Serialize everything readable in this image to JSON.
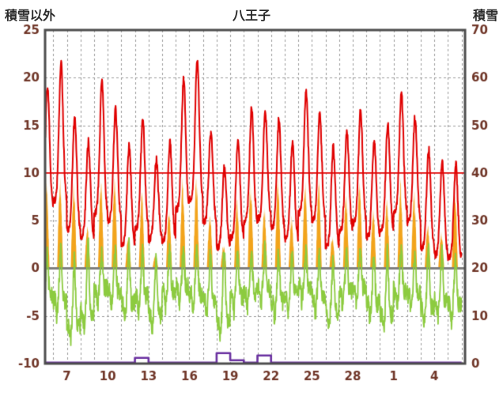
{
  "chart_data": {
    "type": "line",
    "title": "八王子",
    "left_axis": {
      "label": "積雪以外",
      "min": -10,
      "max": 25,
      "ticks": [
        25,
        20,
        15,
        10,
        5,
        0,
        -5,
        -10
      ],
      "tick_color": "#6f3527"
    },
    "right_axis": {
      "label": "積雪",
      "min": 0,
      "max": 70,
      "ticks": [
        70,
        60,
        50,
        40,
        30,
        20,
        10,
        0
      ]
    },
    "x_axis": {
      "tick_labels": [
        "7",
        "10",
        "13",
        "16",
        "19",
        "22",
        "25",
        "28",
        "1",
        "4"
      ],
      "tick_days": [
        7,
        10,
        13,
        16,
        19,
        22,
        25,
        28,
        31,
        34
      ],
      "first_day": 5,
      "start_day": 5.4,
      "end_day": 36.25
    },
    "grid": {
      "dashed_color": "#9a9a9a",
      "zero_line_color": "#7d7d7d",
      "ten_line_color": "#e00000",
      "frame_color": "#4d4d4d"
    },
    "series": {
      "red_line": {
        "color": "#e00000",
        "daily_max": [
          19.2,
          21.3,
          15.7,
          13.2,
          19.6,
          16.6,
          12.8,
          15.6,
          11.4,
          13.2,
          19.8,
          21.8,
          14.3,
          10.6,
          13.4,
          16.6,
          16.4,
          15.6,
          13.2,
          18.6,
          16.2,
          12.6,
          14.4,
          16.4,
          13.4,
          15.2,
          18.4,
          15.8,
          12.4,
          11.2,
          10.8
        ],
        "daily_min": [
          6.5,
          7.0,
          4.0,
          3.2,
          5.8,
          5.0,
          2.4,
          4.2,
          3.0,
          3.0,
          6.2,
          7.2,
          4.8,
          2.2,
          3.2,
          4.8,
          5.2,
          4.2,
          3.0,
          5.8,
          5.0,
          2.2,
          3.8,
          4.8,
          3.2,
          4.0,
          5.8,
          4.8,
          2.0,
          1.4,
          1.0
        ]
      },
      "green_line": {
        "color": "#8ccb3f",
        "daily_max": [
          1.8,
          2.2,
          1.2,
          2.8,
          1.4,
          1.6,
          2.4,
          1.8,
          1.2,
          2.0,
          1.6,
          2.6,
          1.4,
          2.2,
          1.8,
          1.4,
          2.0,
          1.6,
          1.2,
          1.8,
          1.4,
          1.0,
          1.6,
          2.0,
          1.2,
          1.6,
          1.8,
          1.4,
          2.2,
          1.6,
          1.2
        ],
        "daily_min": [
          -4.5,
          -5.0,
          -7.6,
          -6.2,
          -3.8,
          -4.2,
          -5.4,
          -4.6,
          -6.6,
          -4.0,
          -3.6,
          -4.4,
          -5.0,
          -7.2,
          -4.6,
          -4.2,
          -3.8,
          -5.2,
          -4.4,
          -3.6,
          -4.8,
          -6.2,
          -4.2,
          -3.8,
          -5.4,
          -6.6,
          -4.0,
          -4.4,
          -5.8,
          -5.2,
          -5.6
        ]
      },
      "orange_spikes": {
        "color": "#f2a41c",
        "daily_peak": [
          9.8,
          9.8,
          9.6,
          4.5,
          9.8,
          9.8,
          3.5,
          8.5,
          1.5,
          6.5,
          9.8,
          9.8,
          6.0,
          2.5,
          7.5,
          9.8,
          6.5,
          9.8,
          5.5,
          9.8,
          9.8,
          3.5,
          8.5,
          9.8,
          6.5,
          7.5,
          9.8,
          8.5,
          5.0,
          4.0,
          9.0
        ]
      },
      "purple_snow": {
        "color": "#6a30a0",
        "daily_cm": [
          0,
          0,
          0,
          0,
          0,
          0,
          0,
          1,
          0,
          0,
          0,
          0,
          0,
          2,
          0.5,
          0,
          1.5,
          0,
          0,
          0,
          0,
          0,
          0,
          0,
          0,
          0,
          0,
          0,
          0,
          0,
          0
        ]
      }
    }
  }
}
